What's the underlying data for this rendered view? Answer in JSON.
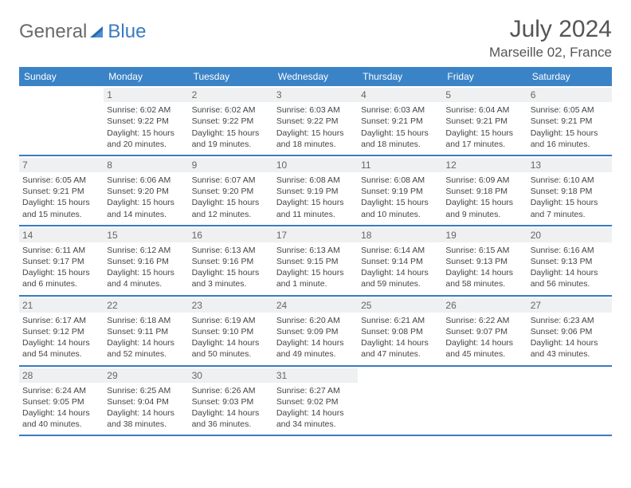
{
  "brand": {
    "part1": "General",
    "part2": "Blue"
  },
  "title": "July 2024",
  "location": "Marseille 02, France",
  "colors": {
    "header_bg": "#3a83c6",
    "header_text": "#ffffff",
    "row_border": "#3a7bbf",
    "daynum_bg": "#eef0f1",
    "text": "#444444",
    "title_text": "#555555"
  },
  "dow": [
    "Sunday",
    "Monday",
    "Tuesday",
    "Wednesday",
    "Thursday",
    "Friday",
    "Saturday"
  ],
  "weeks": [
    [
      {
        "n": "",
        "sunrise": "",
        "sunset": "",
        "daylight": ""
      },
      {
        "n": "1",
        "sunrise": "Sunrise: 6:02 AM",
        "sunset": "Sunset: 9:22 PM",
        "daylight": "Daylight: 15 hours and 20 minutes."
      },
      {
        "n": "2",
        "sunrise": "Sunrise: 6:02 AM",
        "sunset": "Sunset: 9:22 PM",
        "daylight": "Daylight: 15 hours and 19 minutes."
      },
      {
        "n": "3",
        "sunrise": "Sunrise: 6:03 AM",
        "sunset": "Sunset: 9:22 PM",
        "daylight": "Daylight: 15 hours and 18 minutes."
      },
      {
        "n": "4",
        "sunrise": "Sunrise: 6:03 AM",
        "sunset": "Sunset: 9:21 PM",
        "daylight": "Daylight: 15 hours and 18 minutes."
      },
      {
        "n": "5",
        "sunrise": "Sunrise: 6:04 AM",
        "sunset": "Sunset: 9:21 PM",
        "daylight": "Daylight: 15 hours and 17 minutes."
      },
      {
        "n": "6",
        "sunrise": "Sunrise: 6:05 AM",
        "sunset": "Sunset: 9:21 PM",
        "daylight": "Daylight: 15 hours and 16 minutes."
      }
    ],
    [
      {
        "n": "7",
        "sunrise": "Sunrise: 6:05 AM",
        "sunset": "Sunset: 9:21 PM",
        "daylight": "Daylight: 15 hours and 15 minutes."
      },
      {
        "n": "8",
        "sunrise": "Sunrise: 6:06 AM",
        "sunset": "Sunset: 9:20 PM",
        "daylight": "Daylight: 15 hours and 14 minutes."
      },
      {
        "n": "9",
        "sunrise": "Sunrise: 6:07 AM",
        "sunset": "Sunset: 9:20 PM",
        "daylight": "Daylight: 15 hours and 12 minutes."
      },
      {
        "n": "10",
        "sunrise": "Sunrise: 6:08 AM",
        "sunset": "Sunset: 9:19 PM",
        "daylight": "Daylight: 15 hours and 11 minutes."
      },
      {
        "n": "11",
        "sunrise": "Sunrise: 6:08 AM",
        "sunset": "Sunset: 9:19 PM",
        "daylight": "Daylight: 15 hours and 10 minutes."
      },
      {
        "n": "12",
        "sunrise": "Sunrise: 6:09 AM",
        "sunset": "Sunset: 9:18 PM",
        "daylight": "Daylight: 15 hours and 9 minutes."
      },
      {
        "n": "13",
        "sunrise": "Sunrise: 6:10 AM",
        "sunset": "Sunset: 9:18 PM",
        "daylight": "Daylight: 15 hours and 7 minutes."
      }
    ],
    [
      {
        "n": "14",
        "sunrise": "Sunrise: 6:11 AM",
        "sunset": "Sunset: 9:17 PM",
        "daylight": "Daylight: 15 hours and 6 minutes."
      },
      {
        "n": "15",
        "sunrise": "Sunrise: 6:12 AM",
        "sunset": "Sunset: 9:16 PM",
        "daylight": "Daylight: 15 hours and 4 minutes."
      },
      {
        "n": "16",
        "sunrise": "Sunrise: 6:13 AM",
        "sunset": "Sunset: 9:16 PM",
        "daylight": "Daylight: 15 hours and 3 minutes."
      },
      {
        "n": "17",
        "sunrise": "Sunrise: 6:13 AM",
        "sunset": "Sunset: 9:15 PM",
        "daylight": "Daylight: 15 hours and 1 minute."
      },
      {
        "n": "18",
        "sunrise": "Sunrise: 6:14 AM",
        "sunset": "Sunset: 9:14 PM",
        "daylight": "Daylight: 14 hours and 59 minutes."
      },
      {
        "n": "19",
        "sunrise": "Sunrise: 6:15 AM",
        "sunset": "Sunset: 9:13 PM",
        "daylight": "Daylight: 14 hours and 58 minutes."
      },
      {
        "n": "20",
        "sunrise": "Sunrise: 6:16 AM",
        "sunset": "Sunset: 9:13 PM",
        "daylight": "Daylight: 14 hours and 56 minutes."
      }
    ],
    [
      {
        "n": "21",
        "sunrise": "Sunrise: 6:17 AM",
        "sunset": "Sunset: 9:12 PM",
        "daylight": "Daylight: 14 hours and 54 minutes."
      },
      {
        "n": "22",
        "sunrise": "Sunrise: 6:18 AM",
        "sunset": "Sunset: 9:11 PM",
        "daylight": "Daylight: 14 hours and 52 minutes."
      },
      {
        "n": "23",
        "sunrise": "Sunrise: 6:19 AM",
        "sunset": "Sunset: 9:10 PM",
        "daylight": "Daylight: 14 hours and 50 minutes."
      },
      {
        "n": "24",
        "sunrise": "Sunrise: 6:20 AM",
        "sunset": "Sunset: 9:09 PM",
        "daylight": "Daylight: 14 hours and 49 minutes."
      },
      {
        "n": "25",
        "sunrise": "Sunrise: 6:21 AM",
        "sunset": "Sunset: 9:08 PM",
        "daylight": "Daylight: 14 hours and 47 minutes."
      },
      {
        "n": "26",
        "sunrise": "Sunrise: 6:22 AM",
        "sunset": "Sunset: 9:07 PM",
        "daylight": "Daylight: 14 hours and 45 minutes."
      },
      {
        "n": "27",
        "sunrise": "Sunrise: 6:23 AM",
        "sunset": "Sunset: 9:06 PM",
        "daylight": "Daylight: 14 hours and 43 minutes."
      }
    ],
    [
      {
        "n": "28",
        "sunrise": "Sunrise: 6:24 AM",
        "sunset": "Sunset: 9:05 PM",
        "daylight": "Daylight: 14 hours and 40 minutes."
      },
      {
        "n": "29",
        "sunrise": "Sunrise: 6:25 AM",
        "sunset": "Sunset: 9:04 PM",
        "daylight": "Daylight: 14 hours and 38 minutes."
      },
      {
        "n": "30",
        "sunrise": "Sunrise: 6:26 AM",
        "sunset": "Sunset: 9:03 PM",
        "daylight": "Daylight: 14 hours and 36 minutes."
      },
      {
        "n": "31",
        "sunrise": "Sunrise: 6:27 AM",
        "sunset": "Sunset: 9:02 PM",
        "daylight": "Daylight: 14 hours and 34 minutes."
      },
      {
        "n": "",
        "sunrise": "",
        "sunset": "",
        "daylight": ""
      },
      {
        "n": "",
        "sunrise": "",
        "sunset": "",
        "daylight": ""
      },
      {
        "n": "",
        "sunrise": "",
        "sunset": "",
        "daylight": ""
      }
    ]
  ]
}
